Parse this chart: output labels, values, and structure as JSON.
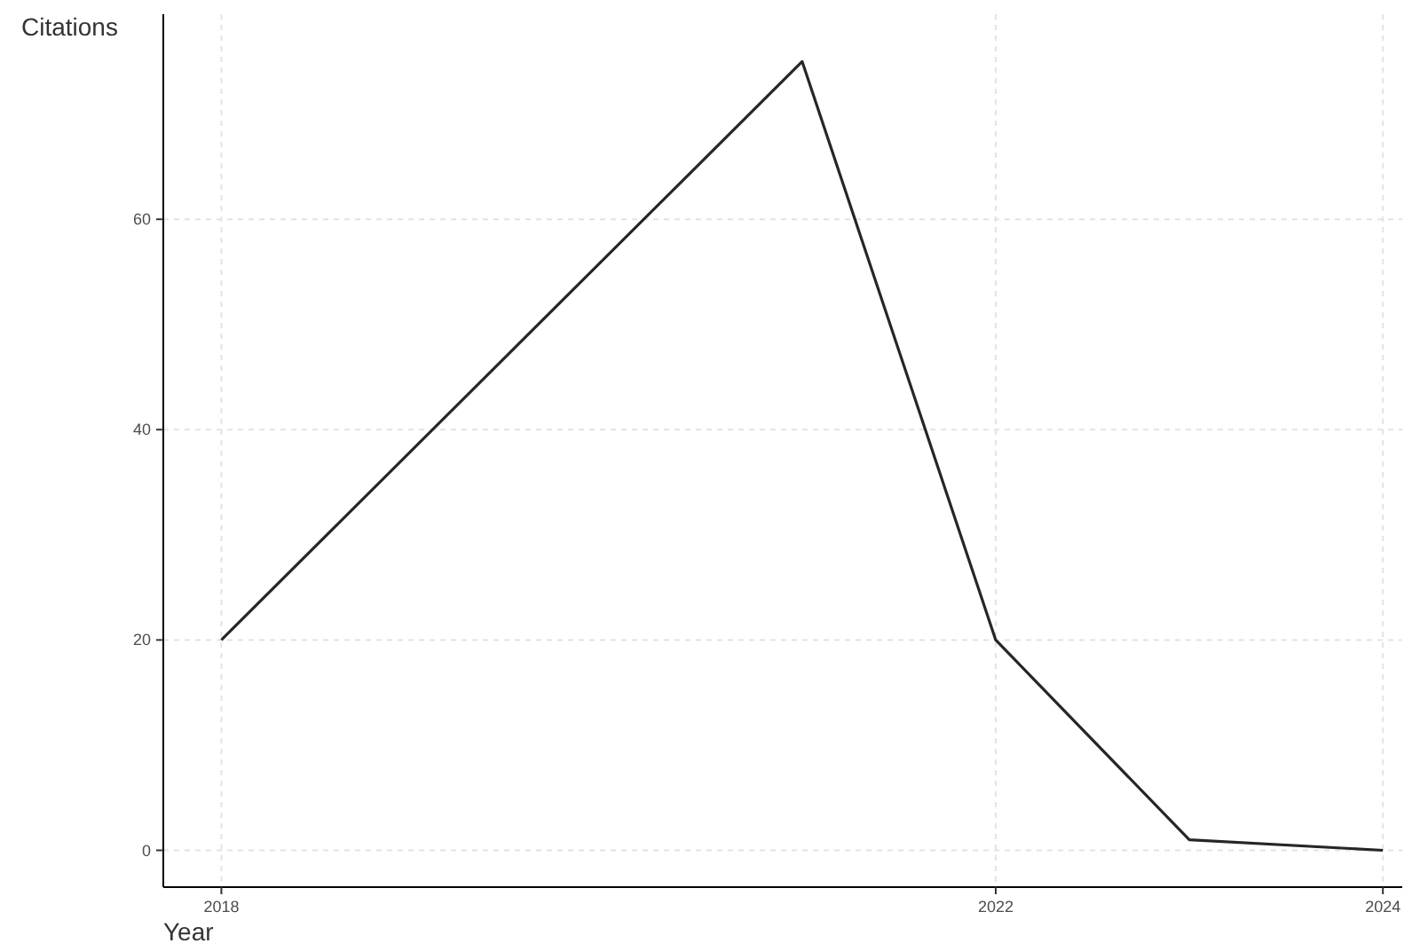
{
  "chart_data": {
    "type": "line",
    "xlabel": "Year",
    "ylabel": "Citations",
    "x": [
      2018,
      2021,
      2022,
      2023,
      2024
    ],
    "series": [
      {
        "color": "#262626",
        "values": [
          20,
          75,
          20,
          1,
          0
        ]
      }
    ],
    "xlim": [
      2017.7,
      2024.1
    ],
    "ylim": [
      -3.5,
      79.5
    ],
    "xticks": [
      2018,
      2022,
      2024
    ],
    "yticks": [
      0,
      20,
      40,
      60
    ],
    "grid": true,
    "marker": "none",
    "line_style": "solid"
  }
}
